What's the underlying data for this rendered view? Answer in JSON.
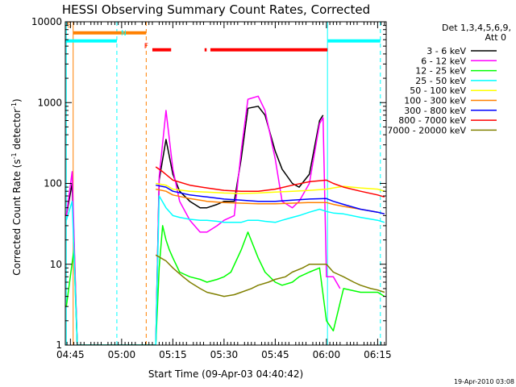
{
  "chart_data": {
    "type": "line",
    "title": "HESSI Observing Summary Count Rates, Corrected",
    "xlabel": "Start Time (09-Apr-03 04:40:42)",
    "ylabel_main": "Corrected Count Rate (s",
    "ylabel_sup1": "-1",
    "ylabel_mid": " detector",
    "ylabel_sup2": "-1",
    "ylabel_end": ")",
    "timestamp": "19-Apr-2010 03:08",
    "x_unit": "minutes since 04:40",
    "xlim": [
      3.5,
      97.5
    ],
    "ylim": [
      1,
      10000
    ],
    "y_scale": "log",
    "x_ticks": [
      {
        "label": "04:45",
        "value": 5
      },
      {
        "label": "05:00",
        "value": 20
      },
      {
        "label": "05:15",
        "value": 35
      },
      {
        "label": "05:30",
        "value": 50
      },
      {
        "label": "05:45",
        "value": 65
      },
      {
        "label": "06:00",
        "value": 80
      },
      {
        "label": "06:15",
        "value": 95
      }
    ],
    "y_ticks": [
      {
        "label": "1",
        "value": 1
      },
      {
        "label": "10",
        "value": 10
      },
      {
        "label": "100",
        "value": 100
      },
      {
        "label": "1000",
        "value": 1000
      },
      {
        "label": "10000",
        "value": 10000
      }
    ],
    "legend": {
      "header1": "Det 1,3,4,5,6,9,",
      "header2": "Att 0",
      "placement": "right"
    },
    "series": [
      {
        "name": "3 - 6 keV",
        "color": "#000000",
        "x": [
          3.8,
          5.5,
          7,
          10,
          30,
          31,
          33,
          35,
          37,
          40,
          43,
          45,
          48,
          50,
          53,
          55,
          57,
          60,
          62,
          65,
          67,
          70,
          72,
          75,
          78,
          79
        ],
        "y": [
          40,
          100,
          1,
          1,
          1,
          110,
          350,
          130,
          80,
          60,
          50,
          50,
          55,
          60,
          60,
          200,
          850,
          900,
          700,
          250,
          150,
          100,
          90,
          130,
          600,
          700
        ]
      },
      {
        "name": "6 - 12 keV",
        "color": "#ff00ff",
        "x": [
          3.8,
          5.5,
          7,
          10,
          30,
          31,
          33,
          35,
          37,
          40,
          43,
          45,
          48,
          50,
          53,
          55,
          57,
          60,
          62,
          65,
          67,
          70,
          72,
          75,
          78,
          79,
          80,
          82,
          84
        ],
        "y": [
          40,
          140,
          1,
          1,
          1,
          120,
          800,
          150,
          60,
          35,
          25,
          25,
          30,
          35,
          40,
          250,
          1100,
          1200,
          800,
          200,
          60,
          50,
          60,
          100,
          550,
          650,
          7,
          7,
          5
        ]
      },
      {
        "name": "12 - 25 keV",
        "color": "#00ff00",
        "x": [
          3.8,
          6,
          7,
          10,
          30,
          31,
          32,
          33,
          34,
          35,
          37,
          40,
          43,
          45,
          48,
          50,
          52,
          55,
          57,
          60,
          62,
          65,
          67,
          70,
          72,
          75,
          78,
          80,
          82,
          85,
          90,
          95,
          97
        ],
        "y": [
          3,
          15,
          1,
          1,
          1,
          9,
          30,
          20,
          15,
          12,
          8,
          7,
          6.5,
          6,
          6.5,
          7,
          8,
          15,
          25,
          12,
          8,
          6,
          5.5,
          6,
          7,
          8,
          9,
          2,
          1.5,
          5,
          4.5,
          4.5,
          4
        ]
      },
      {
        "name": "25 - 50 keV",
        "color": "#00ffff",
        "x": [
          3.8,
          5.5,
          7,
          10,
          30,
          31,
          33,
          35,
          37,
          40,
          43,
          45,
          48,
          50,
          53,
          55,
          57,
          60,
          62,
          65,
          67,
          70,
          72,
          75,
          78,
          80,
          82,
          85,
          90,
          95,
          97
        ],
        "y": [
          35,
          60,
          1,
          1,
          1,
          70,
          50,
          40,
          38,
          36,
          35,
          35,
          34,
          33,
          33,
          33,
          35,
          35,
          34,
          33,
          35,
          38,
          40,
          44,
          48,
          45,
          43,
          42,
          38,
          35,
          33
        ]
      },
      {
        "name": "50 - 100 keV",
        "color": "#ffff00",
        "x": [
          30,
          33,
          35,
          40,
          45,
          50,
          55,
          60,
          65,
          70,
          75,
          80,
          82,
          85,
          90,
          95,
          97
        ],
        "y": [
          100,
          95,
          85,
          80,
          78,
          76,
          75,
          76,
          78,
          80,
          82,
          85,
          88,
          92,
          88,
          85,
          80
        ]
      },
      {
        "name": "100 - 300 keV",
        "color": "#ff8000",
        "x": [
          30,
          33,
          35,
          40,
          45,
          50,
          55,
          60,
          65,
          70,
          75,
          80,
          82,
          85,
          90,
          95,
          97
        ],
        "y": [
          85,
          80,
          72,
          65,
          60,
          58,
          57,
          56,
          56,
          57,
          58,
          58,
          55,
          52,
          48,
          44,
          42
        ]
      },
      {
        "name": "300 - 800 keV",
        "color": "#0000ff",
        "x": [
          30,
          33,
          35,
          40,
          45,
          50,
          55,
          60,
          65,
          70,
          75,
          80,
          82,
          85,
          90,
          95,
          97
        ],
        "y": [
          95,
          90,
          80,
          72,
          68,
          64,
          62,
          60,
          60,
          62,
          64,
          65,
          60,
          55,
          48,
          44,
          42
        ]
      },
      {
        "name": "800 - 7000 keV",
        "color": "#ff0000",
        "x": [
          30,
          32,
          35,
          40,
          45,
          50,
          55,
          60,
          65,
          70,
          75,
          80,
          82,
          85,
          90,
          95,
          97
        ],
        "y": [
          160,
          140,
          110,
          95,
          88,
          82,
          80,
          80,
          85,
          95,
          105,
          110,
          100,
          90,
          80,
          72,
          68
        ]
      },
      {
        "name": "7000 - 20000 keV",
        "color": "#808000",
        "x": [
          30,
          33,
          35,
          38,
          40,
          43,
          45,
          48,
          50,
          53,
          55,
          58,
          60,
          63,
          65,
          68,
          70,
          73,
          75,
          78,
          80,
          82,
          85,
          88,
          90,
          93,
          95,
          97
        ],
        "y": [
          13,
          11,
          9,
          7,
          6,
          5,
          4.5,
          4.2,
          4,
          4.2,
          4.5,
          5,
          5.5,
          6,
          6.5,
          7,
          8,
          9,
          10,
          10,
          10,
          8,
          7,
          6,
          5.5,
          5,
          4.8,
          4.5
        ]
      }
    ],
    "vertical_lines": [
      {
        "x": 3.8,
        "color": "#00ffff",
        "style": "solid"
      },
      {
        "x": 5.8,
        "color": "#ff8000",
        "style": "solid"
      },
      {
        "x": 18.6,
        "color": "#00ffff",
        "style": "dashed"
      },
      {
        "x": 27.2,
        "color": "#ff8000",
        "style": "dashed"
      },
      {
        "x": 80.3,
        "color": "#00ffff",
        "style": "solid"
      },
      {
        "x": 95.8,
        "color": "#00ffff",
        "style": "dashed"
      }
    ],
    "flag_bars": [
      {
        "label": "",
        "color": "#00ffff",
        "y": 5800,
        "segments": [
          [
            3.5,
            18.6
          ],
          [
            80.3,
            95.8
          ]
        ]
      },
      {
        "label": "",
        "color": "#ff8000",
        "y": 7300,
        "segments": [
          [
            5.8,
            27.2
          ]
        ]
      },
      {
        "label": "",
        "color": "#ff0000",
        "y": 4500,
        "segments": [
          [
            29,
            34.5
          ],
          [
            44.3,
            44.9
          ],
          [
            46,
            80.3
          ]
        ]
      }
    ],
    "annotations": [
      {
        "text": "S",
        "x": 4.0,
        "y": 8500,
        "color": "#ff8000"
      },
      {
        "text": "N",
        "x": 19.8,
        "y": 6800,
        "color": "#00ffff"
      },
      {
        "text": "F",
        "x": 26.6,
        "y": 4700,
        "color": "#ff0000"
      }
    ]
  }
}
